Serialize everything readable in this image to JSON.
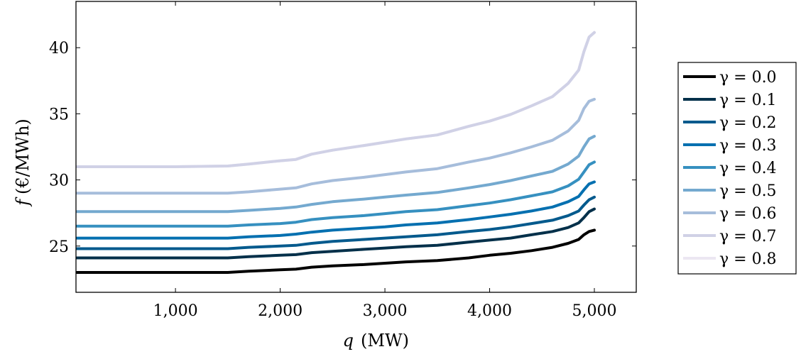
{
  "chart_data": {
    "type": "line",
    "xlabel_var": "q",
    "xlabel_unit": "(MW)",
    "ylabel_var": "f",
    "ylabel_unit": "(€/MWh)",
    "xlim": [
      50,
      5400
    ],
    "ylim": [
      21.5,
      43.5
    ],
    "x_ticks": [
      1000,
      2000,
      3000,
      4000,
      5000
    ],
    "x_tick_labels": [
      "1,000",
      "2,000",
      "3,000",
      "4,000",
      "5,000"
    ],
    "y_ticks": [
      25,
      30,
      35,
      40
    ],
    "y_tick_labels": [
      "25",
      "30",
      "35",
      "40"
    ],
    "grid": false,
    "legend_position": "outside-right",
    "x": [
      60,
      500,
      1000,
      1500,
      1700,
      2000,
      2150,
      2300,
      2500,
      2800,
      3000,
      3200,
      3500,
      3800,
      4000,
      4200,
      4400,
      4600,
      4750,
      4850,
      4900,
      4950,
      5000
    ],
    "series": [
      {
        "name": "γ = 0.0",
        "color": "#000000",
        "values": [
          23.0,
          23.0,
          23.0,
          23.0,
          23.1,
          23.2,
          23.25,
          23.4,
          23.5,
          23.6,
          23.7,
          23.8,
          23.9,
          24.1,
          24.3,
          24.45,
          24.65,
          24.9,
          25.2,
          25.5,
          25.85,
          26.1,
          26.2
        ]
      },
      {
        "name": "γ = 0.1",
        "color": "#03304a",
        "values": [
          24.1,
          24.1,
          24.1,
          24.1,
          24.2,
          24.3,
          24.35,
          24.5,
          24.6,
          24.75,
          24.85,
          24.95,
          25.05,
          25.3,
          25.45,
          25.6,
          25.85,
          26.1,
          26.4,
          26.75,
          27.15,
          27.6,
          27.8
        ]
      },
      {
        "name": "γ = 0.2",
        "color": "#045a8d",
        "values": [
          24.8,
          24.8,
          24.8,
          24.8,
          24.9,
          25.0,
          25.05,
          25.2,
          25.35,
          25.5,
          25.6,
          25.7,
          25.85,
          26.1,
          26.25,
          26.45,
          26.7,
          26.95,
          27.3,
          27.65,
          28.1,
          28.5,
          28.7
        ]
      },
      {
        "name": "γ = 0.3",
        "color": "#0570b0",
        "values": [
          25.6,
          25.6,
          25.6,
          25.6,
          25.7,
          25.8,
          25.9,
          26.05,
          26.2,
          26.35,
          26.45,
          26.6,
          26.75,
          27.0,
          27.2,
          27.4,
          27.65,
          27.95,
          28.35,
          28.75,
          29.25,
          29.7,
          29.85
        ]
      },
      {
        "name": "γ = 0.4",
        "color": "#3690c0",
        "values": [
          26.5,
          26.5,
          26.5,
          26.5,
          26.6,
          26.7,
          26.8,
          27.0,
          27.15,
          27.3,
          27.45,
          27.6,
          27.75,
          28.05,
          28.25,
          28.5,
          28.8,
          29.1,
          29.55,
          30.05,
          30.6,
          31.15,
          31.35
        ]
      },
      {
        "name": "γ = 0.5",
        "color": "#74a9cf",
        "values": [
          27.6,
          27.6,
          27.6,
          27.6,
          27.7,
          27.85,
          27.95,
          28.15,
          28.35,
          28.55,
          28.7,
          28.85,
          29.05,
          29.4,
          29.65,
          29.95,
          30.3,
          30.65,
          31.2,
          31.8,
          32.5,
          33.1,
          33.3
        ]
      },
      {
        "name": "γ = 0.6",
        "color": "#a6bddb",
        "values": [
          29.0,
          29.0,
          29.0,
          29.0,
          29.1,
          29.3,
          29.4,
          29.7,
          29.95,
          30.2,
          30.4,
          30.6,
          30.85,
          31.35,
          31.65,
          32.05,
          32.5,
          33.0,
          33.7,
          34.5,
          35.4,
          35.95,
          36.1
        ]
      },
      {
        "name": "γ = 0.7",
        "color": "#d0d1e6",
        "values": [
          31.0,
          31.0,
          31.0,
          31.05,
          31.2,
          31.45,
          31.55,
          31.95,
          32.25,
          32.6,
          32.85,
          33.1,
          33.4,
          34.05,
          34.45,
          34.95,
          35.6,
          36.3,
          37.3,
          38.3,
          39.7,
          40.8,
          41.15
        ]
      },
      {
        "name": "γ = 0.8",
        "color": "#ece7f2",
        "values": [
          31.0,
          31.0,
          31.0,
          31.05,
          31.2,
          31.45,
          31.55,
          31.95,
          32.25,
          32.6,
          32.85,
          33.1,
          33.4,
          34.05,
          34.45,
          34.95,
          35.6,
          36.3,
          37.3,
          38.3,
          39.7,
          40.8,
          41.15
        ]
      }
    ]
  }
}
